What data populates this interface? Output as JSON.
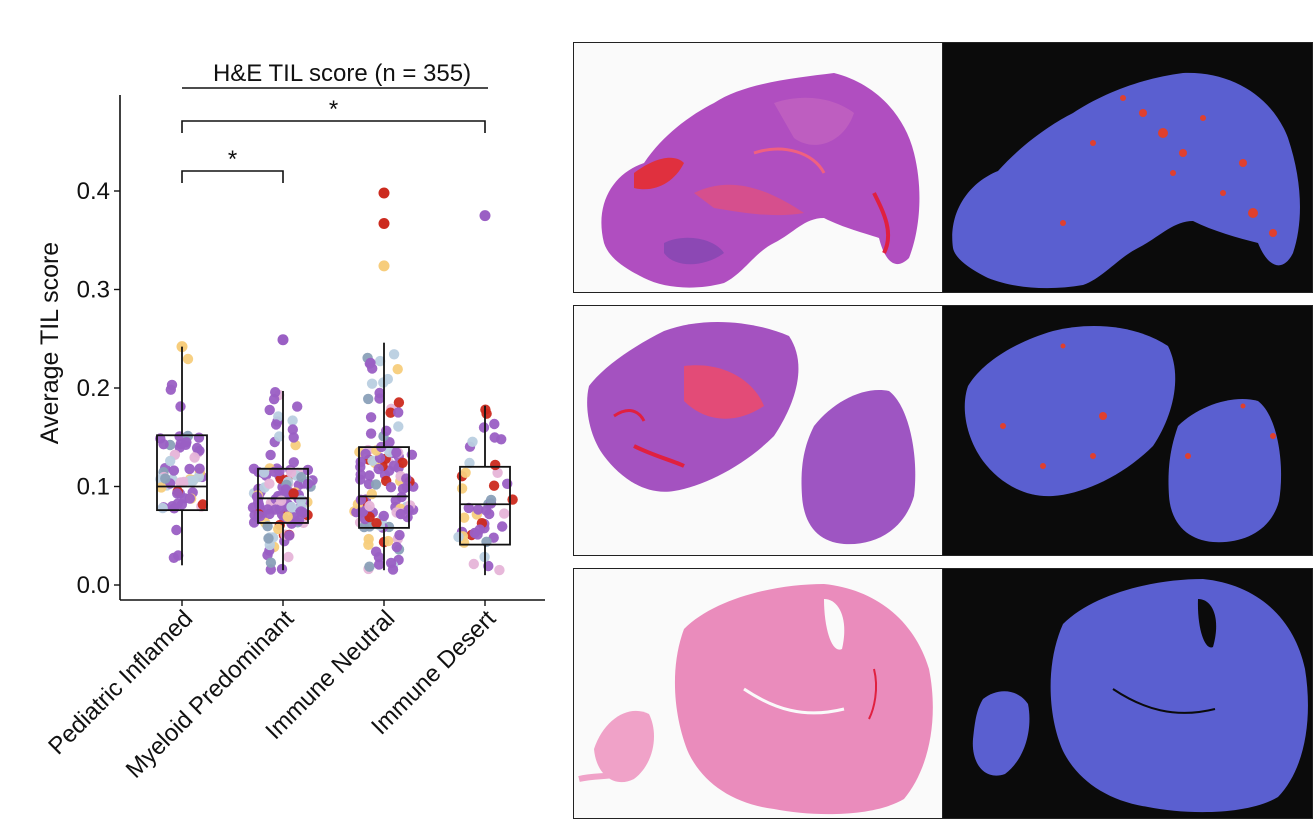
{
  "chart_data": {
    "type": "box",
    "title": "H&E TIL score (n = 355)",
    "xlabel": "",
    "ylabel": "Average TIL score",
    "ylim": [
      0.0,
      0.48
    ],
    "yticks": [
      "0.0",
      "0.1",
      "0.2",
      "0.3",
      "0.4"
    ],
    "categories": [
      "Pediatric Inflamed",
      "Myeloid Predominant",
      "Immune Neutral",
      "Immune Desert"
    ],
    "boxes": [
      {
        "category": "Pediatric Inflamed",
        "whisker_low": 0.02,
        "q1": 0.076,
        "median": 0.1,
        "q3": 0.152,
        "whisker_high": 0.242
      },
      {
        "category": "Myeloid Predominant",
        "whisker_low": 0.015,
        "q1": 0.063,
        "median": 0.088,
        "q3": 0.118,
        "whisker_high": 0.197
      },
      {
        "category": "Immune Neutral",
        "whisker_low": 0.015,
        "q1": 0.058,
        "median": 0.09,
        "q3": 0.14,
        "whisker_high": 0.246
      },
      {
        "category": "Immune Desert",
        "whisker_low": 0.01,
        "q1": 0.041,
        "median": 0.082,
        "q3": 0.12,
        "whisker_high": 0.182
      }
    ],
    "highlighted_points": [
      {
        "category": "Immune Neutral",
        "value": 0.398,
        "color": "#cc2a1e"
      },
      {
        "category": "Immune Neutral",
        "value": 0.367,
        "color": "#cc2a1e"
      },
      {
        "category": "Immune Neutral",
        "value": 0.324,
        "color": "#f7cd7c"
      },
      {
        "category": "Immune Desert",
        "value": 0.375,
        "color": "#9a5fc4"
      },
      {
        "category": "Pediatric Inflamed",
        "value": 0.242,
        "color": "#f7cd7c"
      },
      {
        "category": "Myeloid Predominant",
        "value": 0.249,
        "color": "#9a5fc4"
      }
    ],
    "point_counts": [
      60,
      130,
      120,
      45
    ],
    "significance": [
      {
        "from": "Pediatric Inflamed",
        "to": "Myeloid Predominant",
        "label": "*"
      },
      {
        "from": "Pediatric Inflamed",
        "to": "Immune Desert",
        "label": "*"
      }
    ]
  },
  "colors": {
    "purple": "#9a5fc4",
    "red": "#cc2a1e",
    "yellow": "#f7cd7c",
    "blue_gray": "#8aa0b8",
    "light_blue": "#b9cfe0",
    "pink": "#e6b4d8",
    "mask_blue": "#5a5fd0",
    "mask_red": "#e0402e"
  }
}
